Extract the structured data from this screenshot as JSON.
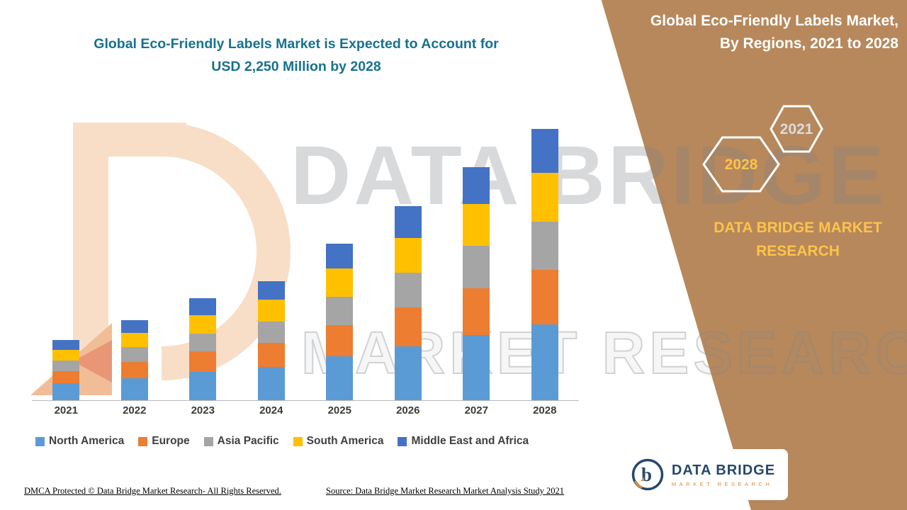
{
  "colors": {
    "panel_brown": "#B7885C",
    "title_teal": "#16728F",
    "brand_gold": "#FCC34A"
  },
  "header": {
    "title_line1": "Global Eco-Friendly Labels Market is Expected to Account for",
    "title_line2": "USD 2,250 Million by 2028"
  },
  "side_panel": {
    "title_line1": "Global Eco-Friendly Labels Market,",
    "title_line2": "By Regions, 2021 to 2028",
    "hexagon_left": "2028",
    "hexagon_right": "2021",
    "brand": "DATA BRIDGE MARKET RESEARCH"
  },
  "watermark": {
    "line1": "DATA BRIDGE",
    "line2": "MARKET RESEARCH"
  },
  "chart_data": {
    "type": "bar",
    "stacked": true,
    "title": "Global Eco-Friendly Labels Market, By Regions, 2021 to 2028",
    "units": "USD Million",
    "categories": [
      "2021",
      "2022",
      "2023",
      "2024",
      "2025",
      "2026",
      "2027",
      "2028"
    ],
    "series": [
      {
        "name": "North America",
        "color": "#5B9BD5",
        "values": [
          140,
          185,
          235,
          275,
          365,
          450,
          540,
          630
        ]
      },
      {
        "name": "Europe",
        "color": "#ED7D31",
        "values": [
          100,
          135,
          170,
          200,
          260,
          320,
          390,
          450
        ]
      },
      {
        "name": "Asia Pacific",
        "color": "#A5A5A5",
        "values": [
          90,
          120,
          150,
          180,
          235,
          290,
          350,
          405
        ]
      },
      {
        "name": "South America",
        "color": "#FFC000",
        "values": [
          90,
          120,
          150,
          180,
          235,
          290,
          350,
          405
        ]
      },
      {
        "name": "Middle East and Africa",
        "color": "#4472C4",
        "values": [
          80,
          105,
          140,
          155,
          205,
          260,
          305,
          360
        ]
      }
    ],
    "totals": [
      500,
      665,
      845,
      990,
      1300,
      1610,
      1935,
      2250
    ],
    "highlight": "USD 2,250 Million by 2028",
    "legend_position": "bottom",
    "y_axis_visible": false
  },
  "footer": {
    "left": "DMCA Protected © Data Bridge Market Research- All Rights Reserved.",
    "source": "Source: Data Bridge Market Research Market Analysis Study 2021"
  },
  "logo": {
    "name": "DATA BRIDGE",
    "tagline": "MARKET RESEARCH"
  }
}
